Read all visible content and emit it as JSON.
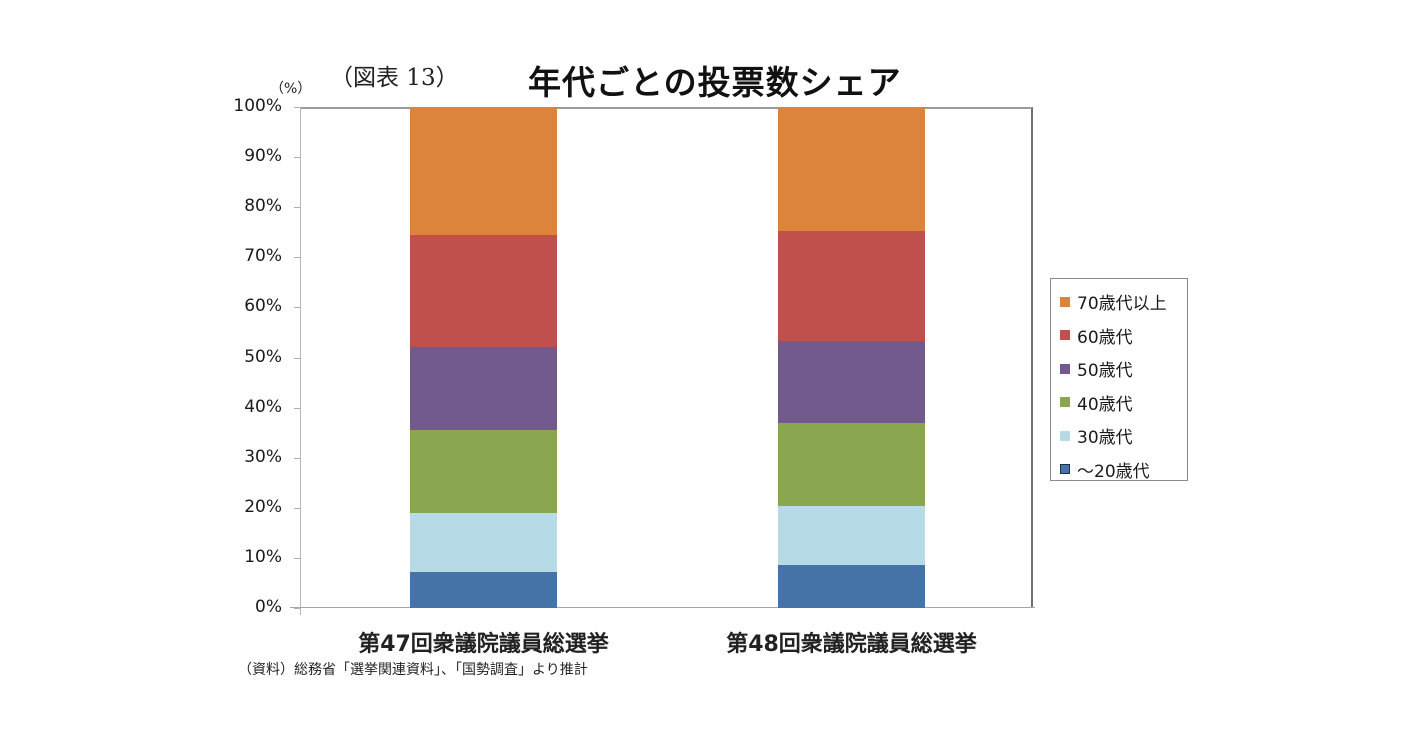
{
  "figure_label": "（図表 13）",
  "title": "年代ごとの投票数シェア",
  "unit_label": "（%）",
  "source_note": "（資料）総務省「選挙関連資料」、「国勢調査」より推計",
  "colors": {
    "age_70_plus": "#dc843c",
    "age_60s": "#c0504d",
    "age_50s": "#725a8f",
    "age_40s": "#8aa64f",
    "age_30s": "#b6dbe7",
    "age_20s_under": "#4573a7"
  },
  "chart_data": {
    "type": "bar",
    "stacked": true,
    "normalized": true,
    "title": "年代ごとの投票数シェア",
    "xlabel": "",
    "ylabel": "（%）",
    "ylim": [
      0,
      100
    ],
    "yticks": [
      "0%",
      "10%",
      "20%",
      "30%",
      "40%",
      "50%",
      "60%",
      "70%",
      "80%",
      "90%",
      "100%"
    ],
    "categories": [
      "第47回衆議院議員総選挙",
      "第48回衆議院議員総選挙"
    ],
    "series": [
      {
        "name": "～20歳代",
        "values": [
          7.2,
          8.6
        ]
      },
      {
        "name": "30歳代",
        "values": [
          11.8,
          11.8
        ]
      },
      {
        "name": "40歳代",
        "values": [
          16.5,
          16.5
        ]
      },
      {
        "name": "50歳代",
        "values": [
          16.6,
          16.4
        ]
      },
      {
        "name": "60歳代",
        "values": [
          22.4,
          21.9
        ]
      },
      {
        "name": "70歳代以上",
        "values": [
          25.5,
          24.8
        ]
      }
    ],
    "legend": [
      "70歳代以上",
      "60歳代",
      "50歳代",
      "40歳代",
      "30歳代",
      "～20歳代"
    ],
    "legend_position": "right",
    "grid": false
  }
}
